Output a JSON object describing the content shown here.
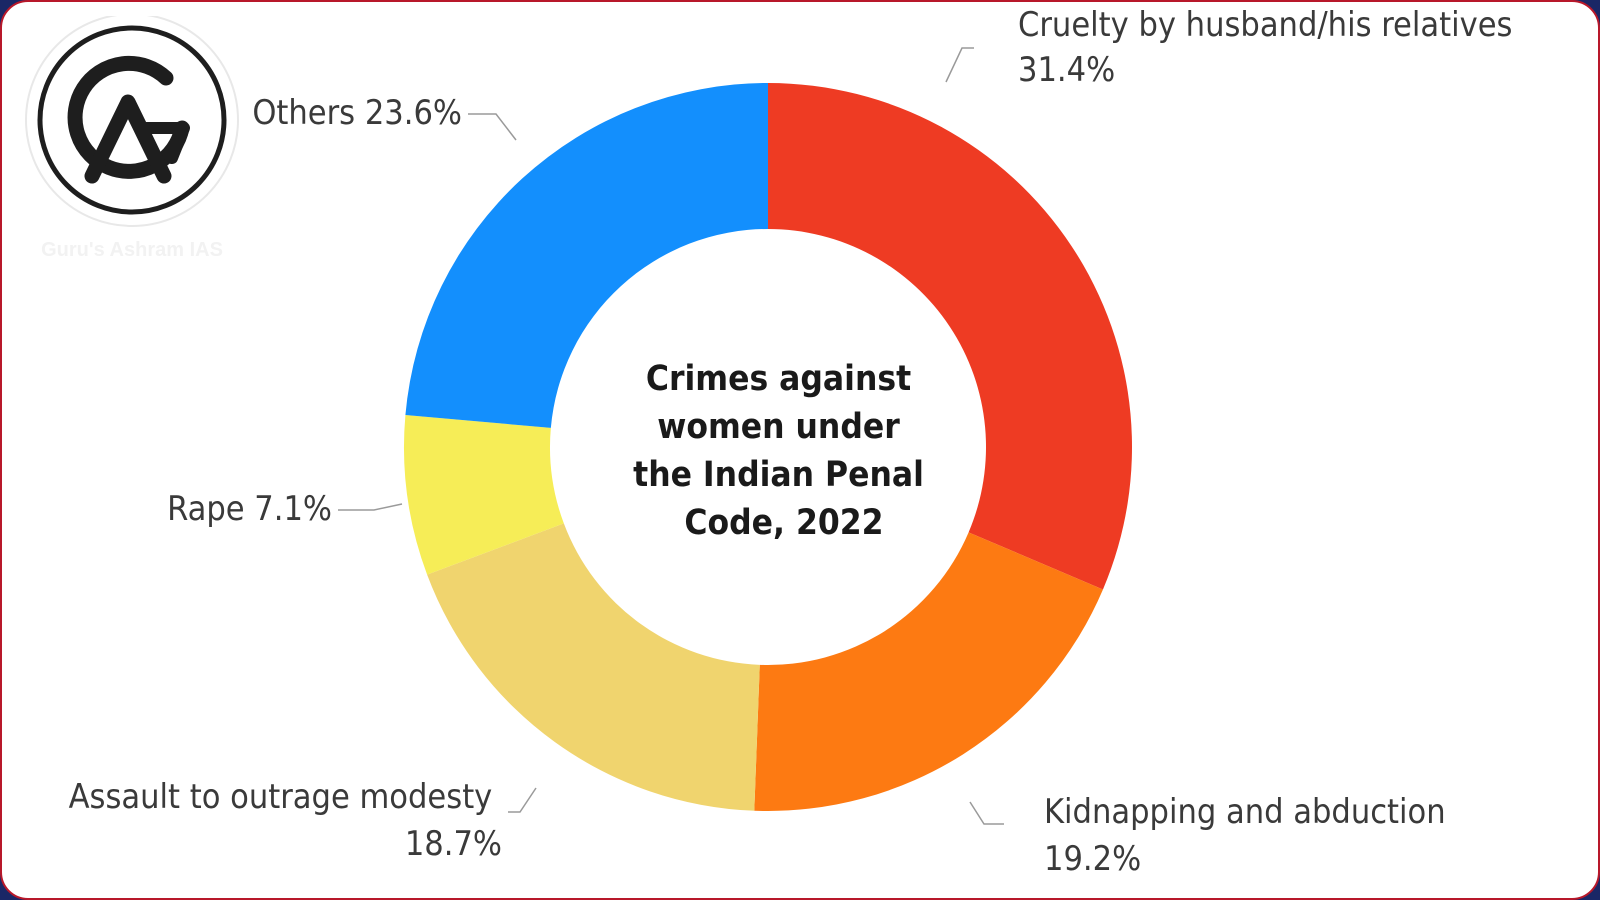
{
  "brand": {
    "logo_caption": "Guru's Ashram IAS"
  },
  "chart_data": {
    "type": "pie",
    "variant": "donut",
    "title": "Crimes against women under the Indian Penal Code, 2022",
    "title_lines": [
      "Crimes against",
      "women under",
      "the Indian Penal",
      "Code, 2022"
    ],
    "unit": "%",
    "slices": [
      {
        "label": "Cruelty by husband/his relatives",
        "value": 31.4,
        "display": "31.4%",
        "color": "#ee3b23"
      },
      {
        "label": "Kidnapping and abduction",
        "value": 19.2,
        "display": "19.2%",
        "color": "#fd7a12"
      },
      {
        "label": "Assault to outrage modesty",
        "value": 18.7,
        "display": "18.7%",
        "color": "#f0d46e"
      },
      {
        "label": "Rape",
        "value": 7.1,
        "display": "7.1%",
        "color": "#f6ed57"
      },
      {
        "label": "Others",
        "value": 23.6,
        "display": "23.6%",
        "color": "#138ffd"
      }
    ]
  }
}
